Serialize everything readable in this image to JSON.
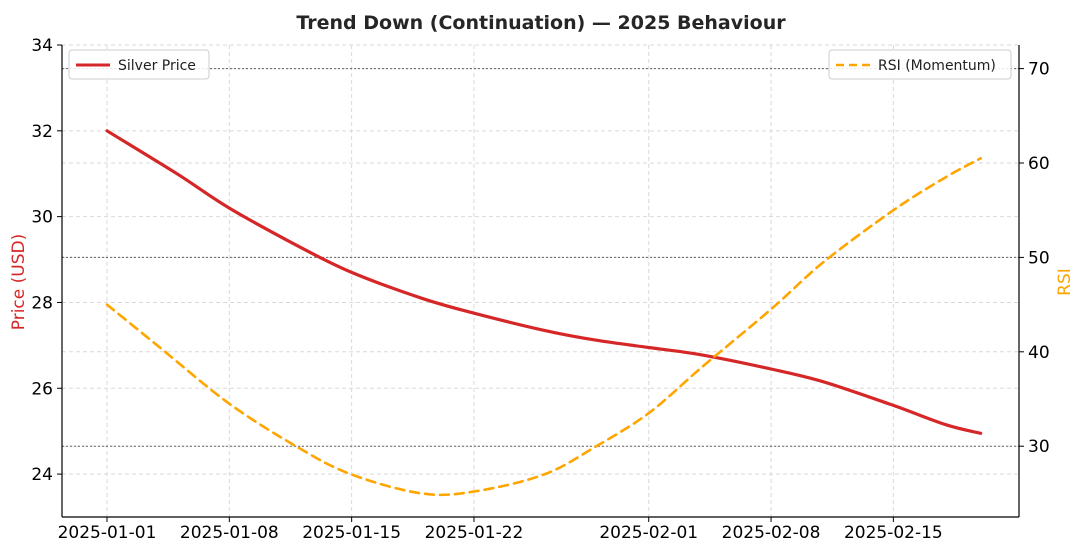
{
  "chart_data": {
    "type": "line",
    "title": "Trend Down (Continuation) — 2025 Behaviour",
    "xlabel": "",
    "y_left_label": "Price (USD)",
    "y_right_label": "RSI",
    "x_ticks": [
      "2025-01-01",
      "2025-01-08",
      "2025-01-15",
      "2025-01-22",
      "2025-02-01",
      "2025-02-08",
      "2025-02-15"
    ],
    "x_range": [
      "2025-01-01",
      "2025-02-20"
    ],
    "y_left_ticks": [
      24,
      26,
      28,
      30,
      32,
      34
    ],
    "y_left_lim": [
      23,
      34
    ],
    "y_right_ticks": [
      30,
      40,
      50,
      60,
      70
    ],
    "y_right_lim": [
      22.5,
      72.5
    ],
    "reference_lines_rsi": [
      30,
      50,
      70
    ],
    "grid": true,
    "legend_left": {
      "label": "Silver Price",
      "position": "upper-left"
    },
    "legend_right": {
      "label": "RSI (Momentum)",
      "position": "upper-right"
    },
    "colors": {
      "price": "#d62728",
      "rsi": "#ffa500",
      "grid": "#d9d9d9",
      "reference": "#666666"
    },
    "series": [
      {
        "name": "Silver Price",
        "axis": "left",
        "style": "solid",
        "points": [
          [
            "2025-01-01",
            32.0
          ],
          [
            "2025-01-05",
            31.0
          ],
          [
            "2025-01-08",
            30.2
          ],
          [
            "2025-01-12",
            29.3
          ],
          [
            "2025-01-15",
            28.7
          ],
          [
            "2025-01-19",
            28.1
          ],
          [
            "2025-01-22",
            27.75
          ],
          [
            "2025-01-26",
            27.35
          ],
          [
            "2025-01-29",
            27.12
          ],
          [
            "2025-02-01",
            26.95
          ],
          [
            "2025-02-04",
            26.78
          ],
          [
            "2025-02-08",
            26.45
          ],
          [
            "2025-02-11",
            26.15
          ],
          [
            "2025-02-15",
            25.6
          ],
          [
            "2025-02-18",
            25.15
          ],
          [
            "2025-02-20",
            24.95
          ]
        ]
      },
      {
        "name": "RSI (Momentum)",
        "axis": "right",
        "style": "dashed",
        "points": [
          [
            "2025-01-01",
            45.0
          ],
          [
            "2025-01-04",
            40.5
          ],
          [
            "2025-01-08",
            34.5
          ],
          [
            "2025-01-12",
            29.8
          ],
          [
            "2025-01-15",
            27.0
          ],
          [
            "2025-01-19",
            25.0
          ],
          [
            "2025-01-22",
            25.2
          ],
          [
            "2025-01-26",
            27.0
          ],
          [
            "2025-01-29",
            30.0
          ],
          [
            "2025-02-01",
            33.5
          ],
          [
            "2025-02-04",
            38.3
          ],
          [
            "2025-02-08",
            44.5
          ],
          [
            "2025-02-11",
            49.5
          ],
          [
            "2025-02-15",
            55.0
          ],
          [
            "2025-02-18",
            58.5
          ],
          [
            "2025-02-20",
            60.5
          ]
        ]
      }
    ]
  }
}
